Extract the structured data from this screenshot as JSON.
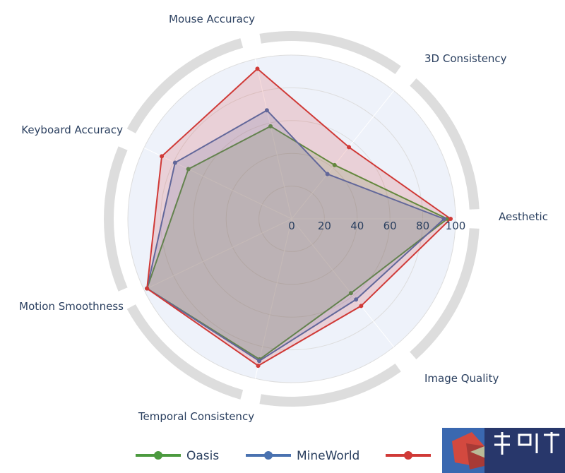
{
  "chart_data": {
    "type": "radar",
    "axes": [
      "Aesthetic",
      "3D Consistency",
      "Mouse Accuracy",
      "Keyboard Accuracy",
      "Motion Smoothness",
      "Temporal Consistency",
      "Image Quality"
    ],
    "radial_range": [
      0,
      100
    ],
    "radial_ticks": [
      "0",
      "20",
      "40",
      "60",
      "80",
      "100"
    ],
    "series": [
      {
        "name": "Oasis",
        "color": "#4c9a3f",
        "values": [
          95,
          42,
          58,
          70,
          98,
          88,
          58
        ]
      },
      {
        "name": "MineWorld",
        "color": "#4a72b0",
        "values": [
          93,
          35,
          68,
          79,
          98,
          89,
          63
        ]
      },
      {
        "name": "",
        "color": "#d03a37",
        "values": [
          97,
          56,
          94,
          88,
          98,
          92,
          68
        ]
      }
    ],
    "grid": true,
    "legend_position": "bottom"
  },
  "decorations": {
    "ring_color": "#dddddd",
    "plot_bg": "#eef2fa",
    "grid_color": "#dddddd",
    "logo_colors": [
      "#3a68b0",
      "#d3493f",
      "#a83a36",
      "#b9ba98",
      "#28376b"
    ]
  }
}
